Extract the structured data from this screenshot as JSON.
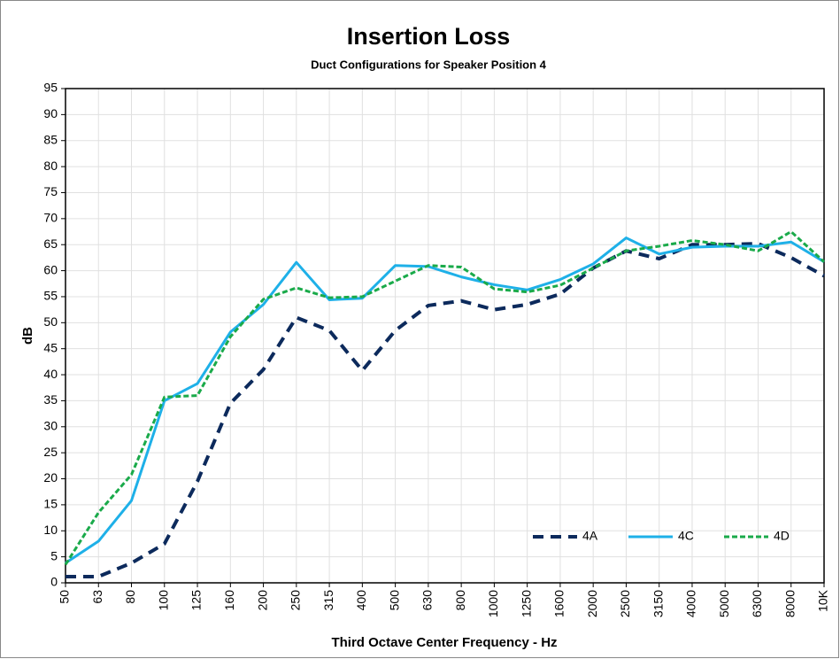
{
  "chart_data": {
    "type": "line",
    "title": "Insertion Loss",
    "subtitle": "Duct Configurations for Speaker Position 4",
    "x_label": "Third Octave Center Frequency - Hz",
    "y_label": "dB",
    "categories": [
      "50",
      "63",
      "80",
      "100",
      "125",
      "160",
      "200",
      "250",
      "315",
      "400",
      "500",
      "630",
      "800",
      "1000",
      "1250",
      "1600",
      "2000",
      "2500",
      "3150",
      "4000",
      "5000",
      "6300",
      "8000",
      "10K"
    ],
    "series": [
      {
        "name": "4A",
        "color": "#0c2a5c",
        "dash": "dashed",
        "values": [
          1.2,
          1.2,
          3.8,
          7.5,
          19.5,
          34.5,
          41,
          51,
          48.5,
          40.8,
          48.5,
          53.3,
          54.2,
          52.5,
          53.5,
          55.5,
          60.5,
          63.8,
          62.3,
          65,
          65,
          65.2,
          62.5,
          59
        ]
      },
      {
        "name": "4C",
        "color": "#1eb0e8",
        "dash": "solid",
        "values": [
          3.8,
          8,
          15.8,
          35,
          38.3,
          48.2,
          53.5,
          61.6,
          54.4,
          54.7,
          61,
          60.8,
          58.8,
          57.3,
          56.3,
          58.3,
          61.3,
          66.3,
          63.2,
          64.5,
          64.7,
          64.7,
          65.5,
          61.7
        ]
      },
      {
        "name": "4D",
        "color": "#1aaa4a",
        "dash": "dotted",
        "values": [
          3.5,
          13.5,
          20.8,
          35.7,
          36,
          47.3,
          54.5,
          56.7,
          54.8,
          55,
          58,
          61,
          60.7,
          56.5,
          55.9,
          57.2,
          60.5,
          63.8,
          64.7,
          65.8,
          65,
          63.8,
          67.5,
          61.7
        ]
      }
    ],
    "ylim": [
      0,
      95
    ],
    "yticks": [
      0,
      5,
      10,
      15,
      20,
      25,
      30,
      35,
      40,
      45,
      50,
      55,
      60,
      65,
      70,
      75,
      80,
      85,
      90,
      95
    ],
    "grid": true,
    "legend": "lower right"
  }
}
